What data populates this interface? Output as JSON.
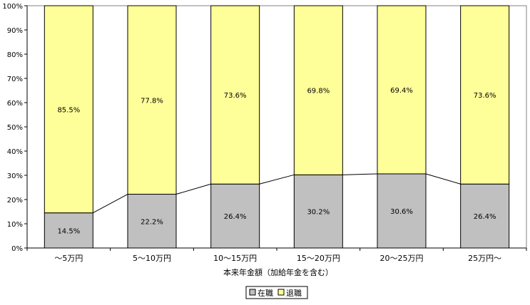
{
  "chart_data": {
    "type": "bar",
    "stacked": true,
    "percent_stacked": true,
    "categories": [
      "～5万円",
      "5～10万円",
      "10～15万円",
      "15～20万円",
      "20～25万円",
      "25万円～"
    ],
    "series": [
      {
        "name": "在職",
        "color": "#c0c0c0",
        "values": [
          14.5,
          22.2,
          26.4,
          30.2,
          30.6,
          26.4
        ],
        "labels": [
          "14.5%",
          "22.2%",
          "26.4%",
          "30.2%",
          "30.6%",
          "26.4%"
        ]
      },
      {
        "name": "退職",
        "color": "#ffff99",
        "values": [
          85.5,
          77.8,
          73.6,
          69.8,
          69.4,
          73.6
        ],
        "labels": [
          "85.5%",
          "77.8%",
          "73.6%",
          "69.8%",
          "69.4%",
          "73.6%"
        ]
      }
    ],
    "series_lines": true,
    "ylim": [
      0,
      100
    ],
    "yticks": [
      "0%",
      "10%",
      "20%",
      "30%",
      "40%",
      "50%",
      "60%",
      "70%",
      "80%",
      "90%",
      "100%"
    ],
    "xlabel": "本来年金額（加給年金を含む）",
    "ylabel": "",
    "title": "",
    "legend_position": "bottom-center",
    "grid": false
  }
}
